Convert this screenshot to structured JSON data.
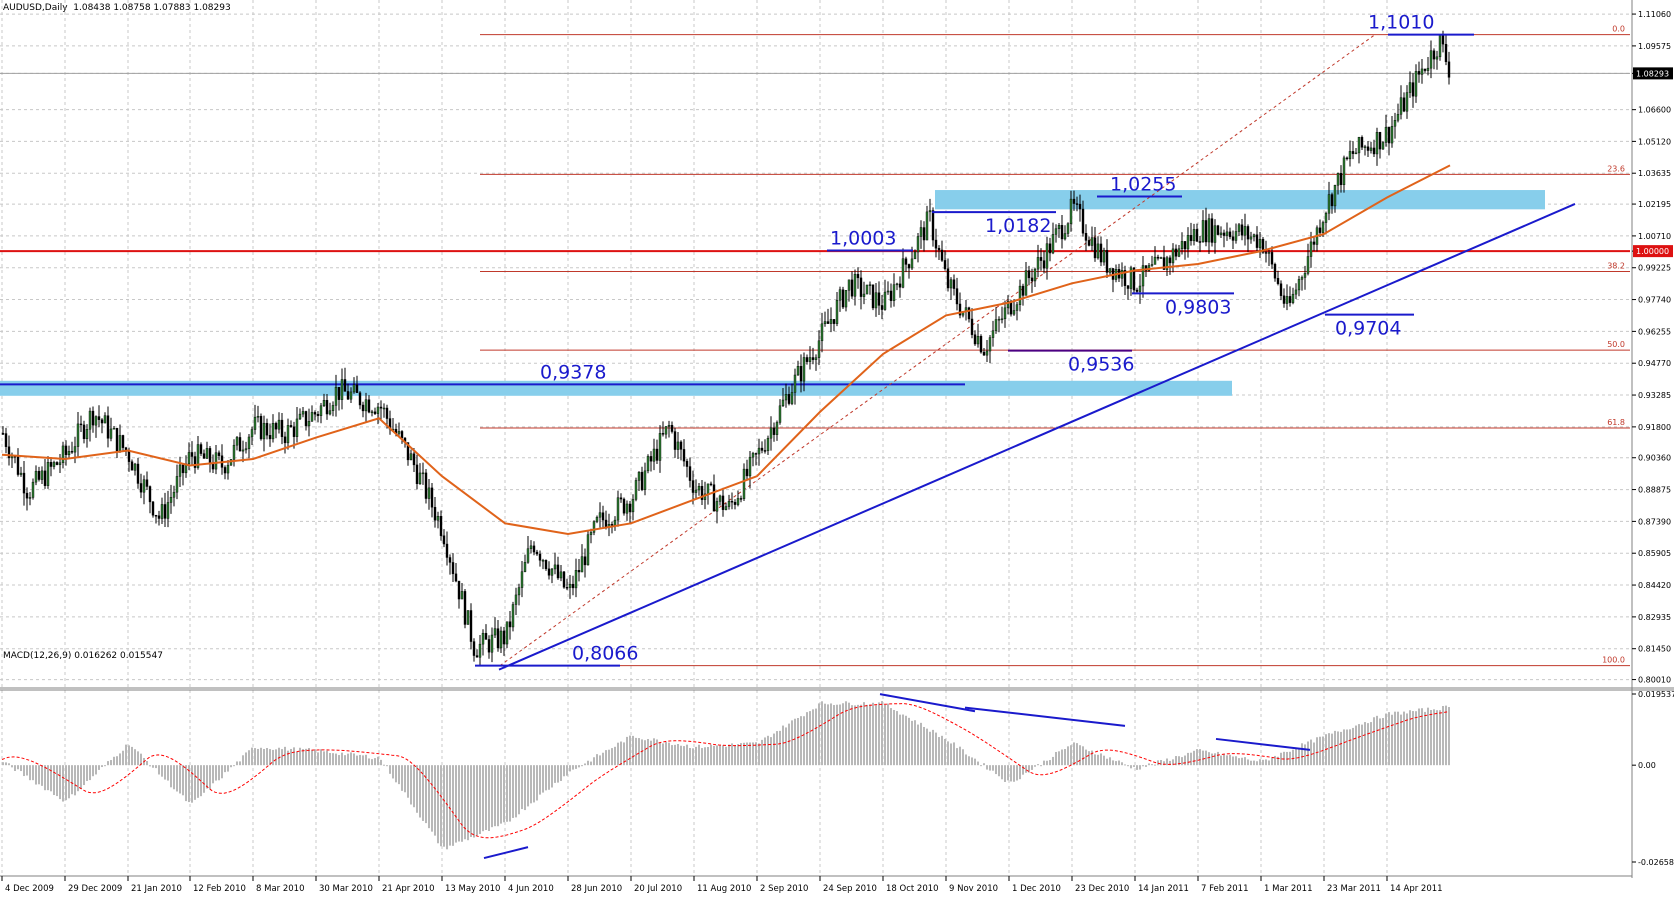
{
  "symbol_header": "AUDUSD,Daily  1.08438 1.08758 1.07883 1.08293",
  "macd_header": "MACD(12,26,9) 0.016262 0.015547",
  "colors": {
    "background": "#ffffff",
    "grid": "#c8c8c8",
    "bull": "#2e7d32",
    "bear": "#000000",
    "ma": "#e0631a",
    "trend": "#1a1acc",
    "fib": "#c0392b",
    "zone": "#87ceeb",
    "macd_hist": "#b8b8b8",
    "signal": "#ff0000"
  },
  "price_axis": {
    "min": 0.7985,
    "max": 1.1125,
    "ticks": [
      "1.11060",
      "1.09575",
      "1.08293",
      "1.06600",
      "1.05120",
      "1.03635",
      "1.02195",
      "1.00710",
      "1.00000",
      "0.99225",
      "0.97740",
      "0.96255",
      "0.94770",
      "0.93285",
      "0.91800",
      "0.90360",
      "0.88875",
      "0.87390",
      "0.85905",
      "0.84420",
      "0.82935",
      "0.81450",
      "0.80010"
    ],
    "current_price": "1.08293",
    "parity_label": "1.00000"
  },
  "macd_axis": {
    "ticks": [
      "0.019537",
      "0.00",
      "-0.02658"
    ]
  },
  "date_labels": [
    "4 Dec 2009",
    "29 Dec 2009",
    "21 Jan 2010",
    "12 Feb 2010",
    "8 Mar 2010",
    "30 Mar 2010",
    "21 Apr 2010",
    "13 May 2010",
    "4 Jun 2010",
    "28 Jun 2010",
    "20 Jul 2010",
    "11 Aug 2010",
    "2 Sep 2010",
    "24 Sep 2010",
    "18 Oct 2010",
    "9 Nov 2010",
    "1 Dec 2010",
    "23 Dec 2010",
    "14 Jan 2011",
    "7 Feb 2011",
    "1 Mar 2011",
    "23 Mar 2011",
    "14 Apr 2011"
  ],
  "fib_levels": [
    {
      "label": "0.0",
      "price": 1.101
    },
    {
      "label": "23.6",
      "price": 1.0358
    },
    {
      "label": "38.2",
      "price": 0.9905
    },
    {
      "label": "50.0",
      "price": 0.9538
    },
    {
      "label": "61.8",
      "price": 0.9175
    },
    {
      "label": "100.0",
      "price": 0.8066
    }
  ],
  "annotations": [
    {
      "text": "1,1010",
      "price": 1.101
    },
    {
      "text": "1,0255",
      "price": 1.0255
    },
    {
      "text": "1,0182",
      "price": 1.0182
    },
    {
      "text": "1,0003",
      "price": 1.0003
    },
    {
      "text": "0,9803",
      "price": 0.9803
    },
    {
      "text": "0,9704",
      "price": 0.9704
    },
    {
      "text": "0,9536",
      "price": 0.9536
    },
    {
      "text": "0,9378",
      "price": 0.9378
    },
    {
      "text": "0,8066",
      "price": 0.8066
    }
  ],
  "chart_data": {
    "type": "candlestick",
    "indicators": [
      "moving average",
      "MACD(12,26,9)"
    ],
    "close_path": [
      [
        "4 Dec 2009",
        0.915
      ],
      [
        "14 Dec 2009",
        0.888
      ],
      [
        "29 Dec 2009",
        0.905
      ],
      [
        "8 Jan 2010",
        0.925
      ],
      [
        "21 Jan 2010",
        0.905
      ],
      [
        "1 Feb 2010",
        0.875
      ],
      [
        "12 Feb 2010",
        0.905
      ],
      [
        "24 Feb 2010",
        0.9
      ],
      [
        "8 Mar 2010",
        0.918
      ],
      [
        "19 Mar 2010",
        0.915
      ],
      [
        "30 Mar 2010",
        0.925
      ],
      [
        "6 Apr 2010",
        0.935
      ],
      [
        "21 Apr 2010",
        0.928
      ],
      [
        "3 May 2010",
        0.9
      ],
      [
        "13 May 2010",
        0.87
      ],
      [
        "24 May 2010",
        0.815
      ],
      [
        "4 Jun 2010",
        0.82
      ],
      [
        "14 Jun 2010",
        0.865
      ],
      [
        "28 Jun 2010",
        0.84
      ],
      [
        "8 Jul 2010",
        0.873
      ],
      [
        "20 Jul 2010",
        0.885
      ],
      [
        "2 Aug 2010",
        0.918
      ],
      [
        "11 Aug 2010",
        0.89
      ],
      [
        "23 Aug 2010",
        0.88
      ],
      [
        "2 Sep 2010",
        0.905
      ],
      [
        "13 Sep 2010",
        0.935
      ],
      [
        "24 Sep 2010",
        0.96
      ],
      [
        "5 Oct 2010",
        0.985
      ],
      [
        "18 Oct 2010",
        0.975
      ],
      [
        "3 Nov 2010",
        1.015
      ],
      [
        "9 Nov 2010",
        0.985
      ],
      [
        "22 Nov 2010",
        0.955
      ],
      [
        "1 Dec 2010",
        0.975
      ],
      [
        "14 Dec 2010",
        1.0
      ],
      [
        "23 Dec 2010",
        1.02
      ],
      [
        "3 Jan 2011",
        0.995
      ],
      [
        "14 Jan 2011",
        0.985
      ],
      [
        "25 Jan 2011",
        0.995
      ],
      [
        "7 Feb 2011",
        1.01
      ],
      [
        "18 Feb 2011",
        1.01
      ],
      [
        "1 Mar 2011",
        1.005
      ],
      [
        "10 Mar 2011",
        0.972
      ],
      [
        "23 Mar 2011",
        1.02
      ],
      [
        "1 Apr 2011",
        1.045
      ],
      [
        "14 Apr 2011",
        1.055
      ],
      [
        "26 Apr 2011",
        1.085
      ],
      [
        "2 May 2011",
        1.098
      ],
      [
        "6 May 2011",
        1.083
      ]
    ],
    "moving_average": [
      [
        "4 Dec 2009",
        0.905
      ],
      [
        "29 Dec 2009",
        0.903
      ],
      [
        "21 Jan 2010",
        0.907
      ],
      [
        "12 Feb 2010",
        0.9
      ],
      [
        "8 Mar 2010",
        0.903
      ],
      [
        "30 Mar 2010",
        0.913
      ],
      [
        "21 Apr 2010",
        0.922
      ],
      [
        "13 May 2010",
        0.895
      ],
      [
        "4 Jun 2010",
        0.873
      ],
      [
        "28 Jun 2010",
        0.868
      ],
      [
        "20 Jul 2010",
        0.873
      ],
      [
        "11 Aug 2010",
        0.884
      ],
      [
        "2 Sep 2010",
        0.895
      ],
      [
        "24 Sep 2010",
        0.925
      ],
      [
        "18 Oct 2010",
        0.952
      ],
      [
        "9 Nov 2010",
        0.97
      ],
      [
        "1 Dec 2010",
        0.976
      ],
      [
        "23 Dec 2010",
        0.985
      ],
      [
        "14 Jan 2011",
        0.991
      ],
      [
        "7 Feb 2011",
        0.994
      ],
      [
        "1 Mar 2011",
        1.0
      ],
      [
        "23 Mar 2011",
        1.008
      ],
      [
        "14 Apr 2011",
        1.025
      ],
      [
        "6 May 2011",
        1.04
      ]
    ],
    "macd_histogram_path": [
      [
        "4 Dec 2009",
        0.001
      ],
      [
        "29 Dec 2009",
        -0.01
      ],
      [
        "21 Jan 2010",
        0.006
      ],
      [
        "12 Feb 2010",
        -0.011
      ],
      [
        "8 Mar 2010",
        0.005
      ],
      [
        "30 Mar 2010",
        0.004
      ],
      [
        "21 Apr 2010",
        0.002
      ],
      [
        "13 May 2010",
        -0.023
      ],
      [
        "4 Jun 2010",
        -0.016
      ],
      [
        "28 Jun 2010",
        -0.002
      ],
      [
        "20 Jul 2010",
        0.008
      ],
      [
        "11 Aug 2010",
        0.005
      ],
      [
        "2 Sep 2010",
        0.006
      ],
      [
        "24 Sep 2010",
        0.017
      ],
      [
        "18 Oct 2010",
        0.017
      ],
      [
        "9 Nov 2010",
        0.007
      ],
      [
        "1 Dec 2010",
        -0.005
      ],
      [
        "23 Dec 2010",
        0.006
      ],
      [
        "14 Jan 2011",
        -0.001
      ],
      [
        "7 Feb 2011",
        0.004
      ],
      [
        "1 Mar 2011",
        0.001
      ],
      [
        "23 Mar 2011",
        0.008
      ],
      [
        "14 Apr 2011",
        0.014
      ],
      [
        "6 May 2011",
        0.016
      ]
    ]
  }
}
